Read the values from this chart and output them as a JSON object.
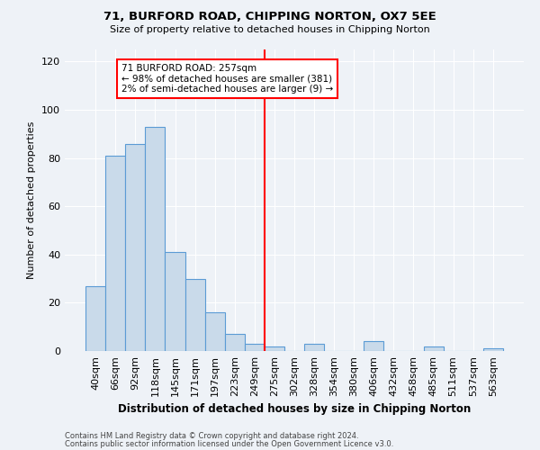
{
  "title": "71, BURFORD ROAD, CHIPPING NORTON, OX7 5EE",
  "subtitle": "Size of property relative to detached houses in Chipping Norton",
  "xlabel": "Distribution of detached houses by size in Chipping Norton",
  "ylabel": "Number of detached properties",
  "bar_labels": [
    "40sqm",
    "66sqm",
    "92sqm",
    "118sqm",
    "145sqm",
    "171sqm",
    "197sqm",
    "223sqm",
    "249sqm",
    "275sqm",
    "302sqm",
    "328sqm",
    "354sqm",
    "380sqm",
    "406sqm",
    "432sqm",
    "458sqm",
    "485sqm",
    "511sqm",
    "537sqm",
    "563sqm"
  ],
  "bar_values": [
    27,
    81,
    86,
    93,
    41,
    30,
    16,
    7,
    3,
    2,
    0,
    3,
    0,
    0,
    4,
    0,
    0,
    2,
    0,
    0,
    1
  ],
  "bar_color": "#c9daea",
  "bar_edge_color": "#5b9bd5",
  "vline_index": 8.5,
  "vline_color": "red",
  "ylim": [
    0,
    125
  ],
  "yticks": [
    0,
    20,
    40,
    60,
    80,
    100,
    120
  ],
  "annotation_title": "71 BURFORD ROAD: 257sqm",
  "annotation_line1": "← 98% of detached houses are smaller (381)",
  "annotation_line2": "2% of semi-detached houses are larger (9) →",
  "annotation_box_color": "red",
  "footer1": "Contains HM Land Registry data © Crown copyright and database right 2024.",
  "footer2": "Contains public sector information licensed under the Open Government Licence v3.0.",
  "background_color": "#eef2f7",
  "grid_color": "#ffffff"
}
